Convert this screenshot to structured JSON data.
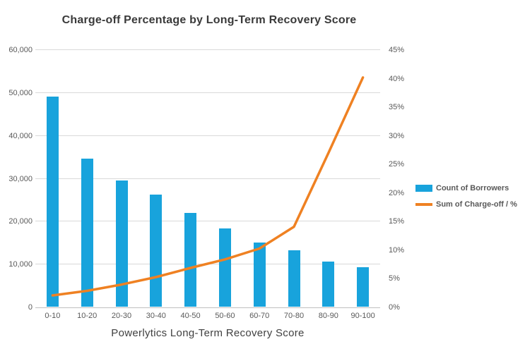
{
  "chart_title": "Charge-off Percentage by Long-Term Recovery Score",
  "x_axis_title": "Powerlytics Long-Term Recovery Score",
  "colors": {
    "bar": "#18a3dc",
    "line": "#ef8122",
    "title_text": "#3a3a3a",
    "tick_text": "#595959",
    "gridline": "#d9d9d9",
    "axis_line": "#bfbfbf"
  },
  "legend": {
    "items": [
      {
        "label": "Count of Borrowers",
        "swatch": "bar-swatch",
        "color": "#18a3dc"
      },
      {
        "label": "Sum of Charge-off / %",
        "swatch": "line-swatch",
        "color": "#ef8122"
      }
    ]
  },
  "chart_data": {
    "type": "bar",
    "subtype": "combo-bar-line-dual-axis",
    "title": "Charge-off Percentage by Long-Term Recovery Score",
    "xlabel": "Powerlytics Long-Term Recovery Score",
    "categories": [
      "0-10",
      "10-20",
      "20-30",
      "30-40",
      "40-50",
      "50-60",
      "60-70",
      "70-80",
      "80-90",
      "90-100"
    ],
    "series": [
      {
        "name": "Count of Borrowers",
        "type": "bar",
        "axis": "left",
        "values": [
          49000,
          34500,
          29400,
          26200,
          21800,
          18200,
          15000,
          13100,
          10500,
          9200
        ]
      },
      {
        "name": "Sum of Charge-off / %",
        "type": "line",
        "axis": "right",
        "values": [
          2.1,
          2.9,
          4.0,
          5.3,
          6.9,
          8.4,
          10.3,
          14.1,
          27.0,
          40.2
        ]
      }
    ],
    "left_axis": {
      "min": 0,
      "max": 60000,
      "ticks_top_to_bottom": [
        "60,000",
        "50,000",
        "40,000",
        "30,000",
        "20,000",
        "10,000",
        "0"
      ]
    },
    "right_axis": {
      "min": 0,
      "max": 45,
      "ticks_top_to_bottom": [
        "45%",
        "40%",
        "35%",
        "30%",
        "25%",
        "20%",
        "15%",
        "10%",
        "5%",
        "0%"
      ]
    },
    "grid": true,
    "legend_position": "right"
  }
}
